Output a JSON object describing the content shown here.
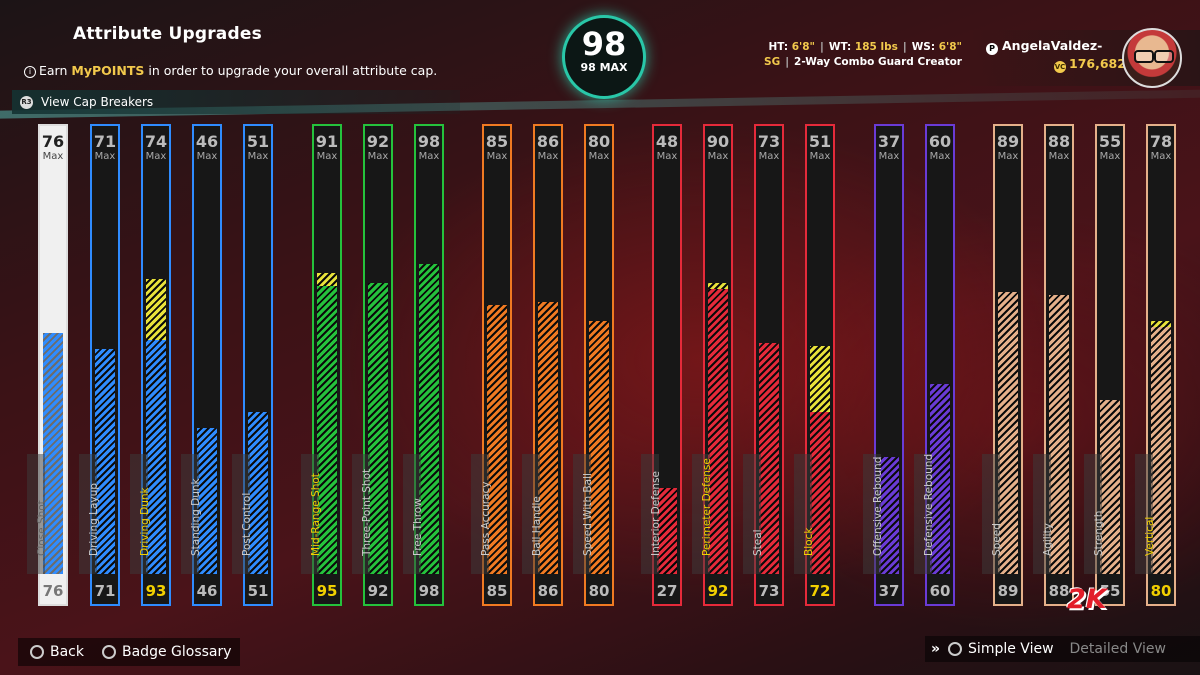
{
  "header": {
    "title": "Attribute Upgrades",
    "info_prefix": "Earn ",
    "info_highlight": "MyPOINTS",
    "info_suffix": " in order to upgrade your overall attribute cap.",
    "cap_breakers_label": "View Cap Breakers"
  },
  "overall": {
    "value": "98",
    "max_label": "98 MAX"
  },
  "player": {
    "ht_label": "HT:",
    "ht": "6'8\"",
    "wt_label": "WT:",
    "wt": "185 lbs",
    "ws_label": "WS:",
    "ws": "6'8\"",
    "position": "SG",
    "archetype": "2-Way Combo Guard Creator"
  },
  "user": {
    "name": "AngelaValdez-",
    "vc": "176,682"
  },
  "colors": {
    "finishing": "#2f8cff",
    "shooting": "#25c23c",
    "playmaking": "#f07a22",
    "defense": "#e52a3a",
    "rebounding": "#6a3bd6",
    "physicals": "#e5b08a",
    "potential": "#e8e23a",
    "accent": "#29c7a8"
  },
  "attributes": [
    {
      "name": "Close Shot",
      "max": "76",
      "current": "76",
      "max_value": 76,
      "current_value": 76,
      "color": "#2f8cff",
      "highlight": false,
      "selected": true
    },
    {
      "name": "Driving Layup",
      "max": "71",
      "current": "71",
      "max_value": 71,
      "current_value": 71,
      "color": "#2f8cff",
      "highlight": false
    },
    {
      "name": "Driving Dunk",
      "max": "74",
      "current": "93",
      "max_value": 74,
      "current_value": 93,
      "color": "#2f8cff",
      "highlight": true
    },
    {
      "name": "Standing Dunk",
      "max": "46",
      "current": "46",
      "max_value": 46,
      "current_value": 46,
      "color": "#2f8cff",
      "highlight": false
    },
    {
      "name": "Post Control",
      "max": "51",
      "current": "51",
      "max_value": 51,
      "current_value": 51,
      "color": "#2f8cff",
      "highlight": false
    },
    {
      "name": "Mid-Range Shot",
      "max": "91",
      "current": "95",
      "max_value": 91,
      "current_value": 95,
      "color": "#25c23c",
      "highlight": true
    },
    {
      "name": "Three-Point Shot",
      "max": "92",
      "current": "92",
      "max_value": 92,
      "current_value": 92,
      "color": "#25c23c",
      "highlight": false
    },
    {
      "name": "Free Throw",
      "max": "98",
      "current": "98",
      "max_value": 98,
      "current_value": 98,
      "color": "#25c23c",
      "highlight": false
    },
    {
      "name": "Pass Accuracy",
      "max": "85",
      "current": "85",
      "max_value": 85,
      "current_value": 85,
      "color": "#f07a22",
      "highlight": false
    },
    {
      "name": "Ball Handle",
      "max": "86",
      "current": "86",
      "max_value": 86,
      "current_value": 86,
      "color": "#f07a22",
      "highlight": false
    },
    {
      "name": "Speed With Ball",
      "max": "80",
      "current": "80",
      "max_value": 80,
      "current_value": 80,
      "color": "#f07a22",
      "highlight": false
    },
    {
      "name": "Interior Defense",
      "max": "48",
      "current": "27",
      "max_value": 48,
      "current_value": 27,
      "color": "#e52a3a",
      "highlight": false
    },
    {
      "name": "Perimeter Defense",
      "max": "90",
      "current": "92",
      "max_value": 90,
      "current_value": 92,
      "color": "#e52a3a",
      "highlight": true
    },
    {
      "name": "Steal",
      "max": "73",
      "current": "73",
      "max_value": 73,
      "current_value": 73,
      "color": "#e52a3a",
      "highlight": false
    },
    {
      "name": "Block",
      "max": "51",
      "current": "72",
      "max_value": 51,
      "current_value": 72,
      "color": "#e52a3a",
      "highlight": true
    },
    {
      "name": "Offensive Rebound",
      "max": "37",
      "current": "37",
      "max_value": 37,
      "current_value": 37,
      "color": "#6a3bd6",
      "highlight": false
    },
    {
      "name": "Defensive Rebound",
      "max": "60",
      "current": "60",
      "max_value": 60,
      "current_value": 60,
      "color": "#6a3bd6",
      "highlight": false
    },
    {
      "name": "Speed",
      "max": "89",
      "current": "89",
      "max_value": 89,
      "current_value": 89,
      "color": "#e5b08a",
      "highlight": false
    },
    {
      "name": "Agility",
      "max": "88",
      "current": "88",
      "max_value": 88,
      "current_value": 88,
      "color": "#e5b08a",
      "highlight": false
    },
    {
      "name": "Strength",
      "max": "55",
      "current": "55",
      "max_value": 55,
      "current_value": 55,
      "color": "#e5b08a",
      "highlight": false
    },
    {
      "name": "Vertical",
      "max": "78",
      "current": "80",
      "max_value": 78,
      "current_value": 80,
      "color": "#e5b08a",
      "highlight": true
    }
  ],
  "max_suffix": "Max",
  "footer": {
    "back": "Back",
    "glossary": "Badge Glossary",
    "simple_view": "Simple View",
    "detailed_view": "Detailed View",
    "logo": "2K"
  }
}
